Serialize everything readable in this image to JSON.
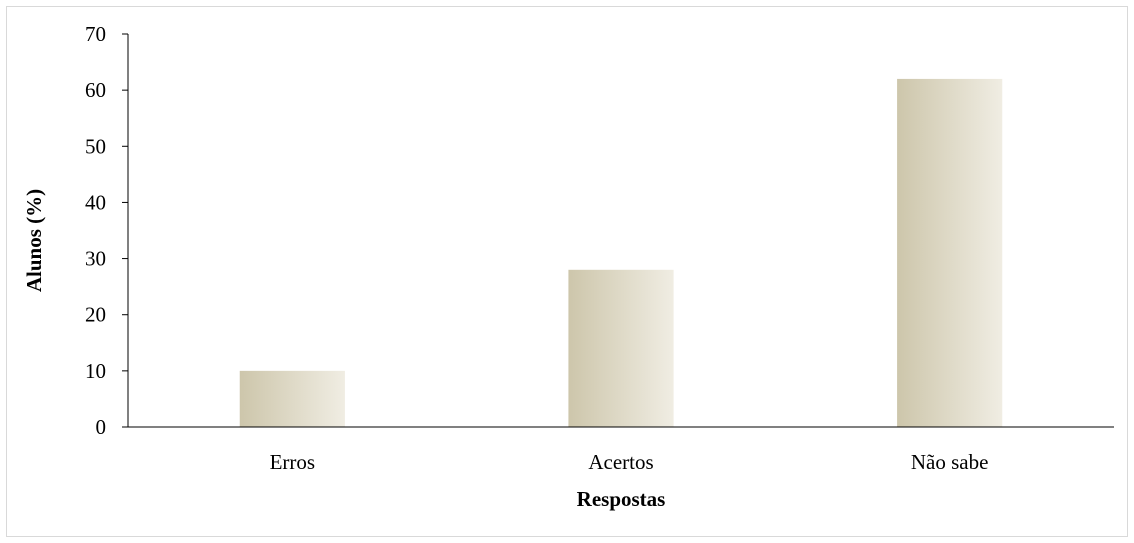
{
  "chart_data": {
    "type": "bar",
    "categories": [
      "Erros",
      "Acertos",
      "Não sabe"
    ],
    "values": [
      10,
      28,
      62
    ],
    "title": "",
    "xlabel": "Respostas",
    "ylabel": "Alunos (%)",
    "ylim": [
      0,
      70
    ],
    "yticks": [
      0,
      10,
      20,
      30,
      40,
      50,
      60,
      70
    ],
    "grid": false,
    "legend": "none",
    "colors": {
      "bar_dark": "#cdc6ab",
      "bar_light": "#f0ede3",
      "axis": "#000000",
      "frame": "#d9d9d9"
    }
  }
}
